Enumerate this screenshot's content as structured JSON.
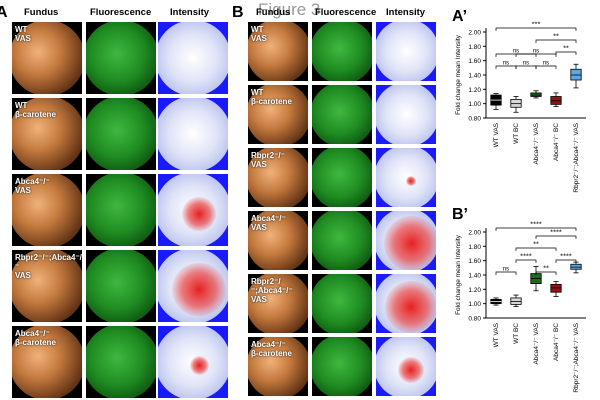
{
  "figure_title": "Figure 3",
  "panels": {
    "a": "A",
    "b": "B",
    "a_prime": "A’",
    "b_prime": "B’"
  },
  "columns": {
    "fundus": "Fundus",
    "fluorescence": "Fluorescence",
    "intensity": "Intensity"
  },
  "panel_a_rows": [
    {
      "line1": "WT",
      "line2": "VAS"
    },
    {
      "line1": "WT",
      "line2": "β-carotene"
    },
    {
      "line1": "Abca4⁻/⁻",
      "line2": "VAS"
    },
    {
      "line1": "Rbpr2⁻/⁻;Abca4⁻/⁻",
      "line2": "VAS"
    },
    {
      "line1": "Abca4⁻/⁻",
      "line2": "β-carotene"
    }
  ],
  "panel_b_rows": [
    {
      "line1": "WT",
      "line2": "VAS"
    },
    {
      "line1": "WT",
      "line2": "β-carotene"
    },
    {
      "line1": "Rbpr2⁻/⁻",
      "line2": "VAS"
    },
    {
      "line1": "Abca4⁻/⁻",
      "line2": "VAS"
    },
    {
      "line1": "Rbpr2⁻/⁻;Abca4⁻/⁻",
      "line2": "VAS"
    },
    {
      "line1": "Abca4⁻/⁻",
      "line2": "β-carotene"
    }
  ],
  "chart_data": [
    {
      "type": "box",
      "panel": "A’",
      "ylabel": "Fold change mean Intensity",
      "ylim": [
        0.8,
        2.0
      ],
      "yticks": [
        "0.80",
        "1.00",
        "1.20",
        "1.40",
        "1.60",
        "1.80",
        "2.00"
      ],
      "categories": [
        "WT VAS",
        "WT BC",
        "Abca4⁻/⁻ VAS",
        "Abca4⁻/⁻ BC",
        "Rbpr2⁻/⁻;Abca4⁻/⁻ VAS"
      ],
      "colors": [
        "#000000",
        "#d9d9d9",
        "#1e6b1e",
        "#9b1010",
        "#5aa9e6"
      ],
      "boxes": [
        {
          "min": 0.92,
          "q1": 0.98,
          "median": 1.05,
          "q3": 1.12,
          "max": 1.14
        },
        {
          "min": 0.88,
          "q1": 0.95,
          "median": 1.0,
          "q3": 1.06,
          "max": 1.1
        },
        {
          "min": 1.08,
          "q1": 1.1,
          "median": 1.12,
          "q3": 1.15,
          "max": 1.18
        },
        {
          "min": 0.96,
          "q1": 0.99,
          "median": 1.04,
          "q3": 1.1,
          "max": 1.15
        },
        {
          "min": 1.22,
          "q1": 1.33,
          "median": 1.4,
          "q3": 1.48,
          "max": 1.55
        }
      ],
      "significance": [
        "ns",
        "ns",
        "ns",
        "ns",
        "ns",
        "**",
        "**",
        "***"
      ]
    },
    {
      "type": "box",
      "panel": "B’",
      "ylabel": "Fold change mean Intensity",
      "ylim": [
        0.8,
        2.0
      ],
      "yticks": [
        "0.80",
        "1.00",
        "1.20",
        "1.40",
        "1.60",
        "1.80",
        "2.00"
      ],
      "categories": [
        "WT VAS",
        "WT BC",
        "Abca4⁻/⁻ VAS",
        "Abca4⁻/⁻ BC",
        "Rbpr2⁻/⁻;Abca4⁻/⁻ VAS"
      ],
      "colors": [
        "#000000",
        "#d9d9d9",
        "#1e6b1e",
        "#9b1010",
        "#5aa9e6"
      ],
      "boxes": [
        {
          "min": 0.98,
          "q1": 1.0,
          "median": 1.03,
          "q3": 1.06,
          "max": 1.08
        },
        {
          "min": 0.96,
          "q1": 0.99,
          "median": 1.03,
          "q3": 1.08,
          "max": 1.12
        },
        {
          "min": 1.18,
          "q1": 1.28,
          "median": 1.35,
          "q3": 1.42,
          "max": 1.52
        },
        {
          "min": 1.1,
          "q1": 1.16,
          "median": 1.22,
          "q3": 1.27,
          "max": 1.31
        },
        {
          "min": 1.43,
          "q1": 1.48,
          "median": 1.51,
          "q3": 1.55,
          "max": 1.58
        }
      ],
      "significance": [
        "ns",
        "****",
        "**",
        "**",
        "****",
        "****",
        "****"
      ]
    }
  ]
}
